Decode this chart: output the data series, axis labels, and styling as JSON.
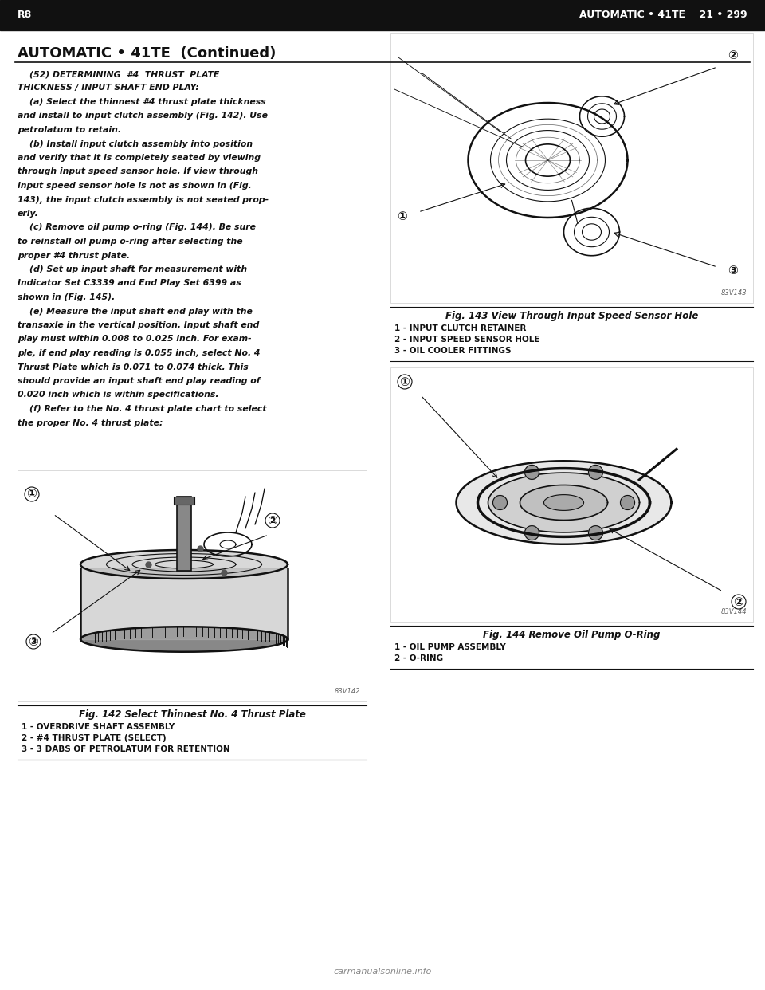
{
  "page_bg": "#ffffff",
  "top_bar_color": "#111111",
  "header_left": "R8",
  "header_right": "AUTOMATIC • 41TE    21 • 299",
  "section_title": "AUTOMATIC • 41TE  (Continued)",
  "text_color": "#111111",
  "main_text_lines": [
    "    (52) DETERMINING  #4  THRUST  PLATE",
    "THICKNESS / INPUT SHAFT END PLAY:",
    "    (a) Select the thinnest #4 thrust plate thickness",
    "and install to input clutch assembly (Fig. 142). Use",
    "petrolatum to retain.",
    "    (b) Install input clutch assembly into position",
    "and verify that it is completely seated by viewing",
    "through input speed sensor hole. If view through",
    "input speed sensor hole is not as shown in (Fig.",
    "143), the input clutch assembly is not seated prop-",
    "erly.",
    "    (c) Remove oil pump o-ring (Fig. 144). Be sure",
    "to reinstall oil pump o-ring after selecting the",
    "proper #4 thrust plate.",
    "    (d) Set up input shaft for measurement with",
    "Indicator Set C3339 and End Play Set 6399 as",
    "shown in (Fig. 145).",
    "    (e) Measure the input shaft end play with the",
    "transaxle in the vertical position. Input shaft end",
    "play must within 0.008 to 0.025 inch. For exam-",
    "ple, if end play reading is 0.055 inch, select No. 4",
    "Thrust Plate which is 0.071 to 0.074 thick. This",
    "should provide an input shaft end play reading of",
    "0.020 inch which is within specifications.",
    "    (f) Refer to the No. 4 thrust plate chart to select",
    "the proper No. 4 thrust plate:"
  ],
  "fig142_caption": "Fig. 142 Select Thinnest No. 4 Thrust Plate",
  "fig142_labels": [
    "1 - OVERDRIVE SHAFT ASSEMBLY",
    "2 - #4 THRUST PLATE (SELECT)",
    "3 - 3 DABS OF PETROLATUM FOR RETENTION"
  ],
  "fig143_caption": "Fig. 143 View Through Input Speed Sensor Hole",
  "fig143_labels": [
    "1 - INPUT CLUTCH RETAINER",
    "2 - INPUT SPEED SENSOR HOLE",
    "3 - OIL COOLER FITTINGS"
  ],
  "fig144_caption": "Fig. 144 Remove Oil Pump O-Ring",
  "fig144_labels": [
    "1 - OIL PUMP ASSEMBLY",
    "2 - O-RING"
  ],
  "watermark": "carmanualsonline.info"
}
